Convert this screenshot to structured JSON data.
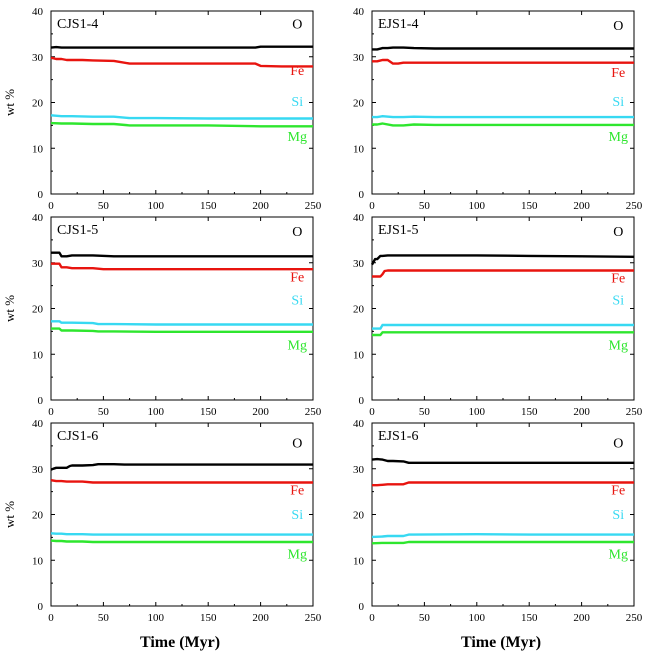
{
  "colors": {
    "O": "#000000",
    "Fe": "#e8140f",
    "Si": "#37d9f2",
    "Mg": "#2ee62e",
    "axis": "#000000"
  },
  "chart_data": [
    {
      "type": "line",
      "title": "CJS1-4",
      "xlabel": "",
      "ylabel": "wt %",
      "xlim": [
        0,
        250
      ],
      "ylim": [
        0,
        40
      ],
      "xticks": [
        "0",
        "50",
        "100",
        "150",
        "200",
        "250"
      ],
      "yticks": [
        "0",
        "10",
        "20",
        "30",
        "40"
      ],
      "series": [
        {
          "name": "O",
          "x": [
            0,
            5,
            10,
            15,
            20,
            30,
            40,
            60,
            80,
            100,
            150,
            195,
            200,
            210,
            230,
            250
          ],
          "y": [
            32.0,
            32.1,
            32.0,
            32.0,
            32.0,
            32.0,
            32.0,
            32.0,
            32.0,
            32.0,
            32.0,
            32.0,
            32.2,
            32.2,
            32.2,
            32.2
          ]
        },
        {
          "name": "Fe",
          "x": [
            0,
            5,
            10,
            15,
            20,
            30,
            40,
            60,
            75,
            80,
            100,
            150,
            195,
            200,
            220,
            250
          ],
          "y": [
            29.8,
            29.5,
            29.5,
            29.3,
            29.3,
            29.3,
            29.2,
            29.1,
            28.5,
            28.5,
            28.5,
            28.5,
            28.5,
            28.0,
            27.9,
            27.9
          ]
        },
        {
          "name": "Si",
          "x": [
            0,
            10,
            20,
            40,
            60,
            75,
            80,
            100,
            150,
            200,
            250
          ],
          "y": [
            17.2,
            17.0,
            17.0,
            16.9,
            16.9,
            16.6,
            16.6,
            16.6,
            16.5,
            16.5,
            16.5
          ]
        },
        {
          "name": "Mg",
          "x": [
            0,
            10,
            20,
            40,
            60,
            75,
            80,
            100,
            150,
            200,
            250
          ],
          "y": [
            15.5,
            15.4,
            15.4,
            15.3,
            15.3,
            15.0,
            15.0,
            15.0,
            15.0,
            14.8,
            14.8
          ]
        }
      ],
      "labels": [
        {
          "text": "O",
          "x": 235,
          "y": 36.2
        },
        {
          "text": "Fe",
          "x": 235,
          "y": 26.0
        },
        {
          "text": "Si",
          "x": 235,
          "y": 19.2
        },
        {
          "text": "Mg",
          "x": 235,
          "y": 11.6
        }
      ]
    },
    {
      "type": "line",
      "title": "EJS1-4",
      "xlabel": "",
      "ylabel": "",
      "xlim": [
        0,
        250
      ],
      "ylim": [
        0,
        40
      ],
      "xticks": [
        "0",
        "50",
        "100",
        "150",
        "200",
        "250"
      ],
      "yticks": [
        "0",
        "10",
        "20",
        "30",
        "40"
      ],
      "series": [
        {
          "name": "O",
          "x": [
            0,
            5,
            10,
            15,
            20,
            30,
            40,
            60,
            80,
            100,
            150,
            200,
            250
          ],
          "y": [
            31.6,
            31.6,
            31.9,
            31.9,
            32.0,
            32.0,
            31.9,
            31.8,
            31.8,
            31.8,
            31.8,
            31.8,
            31.8
          ]
        },
        {
          "name": "Fe",
          "x": [
            0,
            5,
            10,
            15,
            20,
            25,
            30,
            40,
            60,
            100,
            150,
            200,
            250
          ],
          "y": [
            29.0,
            29.0,
            29.3,
            29.3,
            28.5,
            28.5,
            28.7,
            28.7,
            28.7,
            28.7,
            28.7,
            28.7,
            28.7
          ]
        },
        {
          "name": "Si",
          "x": [
            0,
            5,
            10,
            20,
            30,
            40,
            60,
            100,
            150,
            200,
            250
          ],
          "y": [
            16.8,
            16.8,
            17.0,
            16.8,
            16.8,
            16.9,
            16.8,
            16.8,
            16.8,
            16.8,
            16.8
          ]
        },
        {
          "name": "Mg",
          "x": [
            0,
            5,
            10,
            20,
            30,
            40,
            60,
            100,
            150,
            200,
            250
          ],
          "y": [
            15.2,
            15.2,
            15.4,
            15.0,
            15.0,
            15.2,
            15.1,
            15.1,
            15.1,
            15.1,
            15.1
          ]
        }
      ],
      "labels": [
        {
          "text": "O",
          "x": 235,
          "y": 35.9
        },
        {
          "text": "Fe",
          "x": 235,
          "y": 25.6
        },
        {
          "text": "Si",
          "x": 235,
          "y": 19.2
        },
        {
          "text": "Mg",
          "x": 235,
          "y": 11.6
        }
      ]
    },
    {
      "type": "line",
      "title": "CJS1-5",
      "xlabel": "",
      "ylabel": "wt %",
      "xlim": [
        0,
        250
      ],
      "ylim": [
        0,
        40
      ],
      "xticks": [
        "0",
        "50",
        "100",
        "150",
        "200",
        "250"
      ],
      "yticks": [
        "0",
        "10",
        "20",
        "30",
        "40"
      ],
      "series": [
        {
          "name": "O",
          "x": [
            0,
            8,
            10,
            15,
            20,
            40,
            60,
            100,
            150,
            200,
            250
          ],
          "y": [
            32.2,
            32.2,
            31.4,
            31.4,
            31.6,
            31.6,
            31.4,
            31.4,
            31.4,
            31.4,
            31.4
          ]
        },
        {
          "name": "Fe",
          "x": [
            0,
            8,
            10,
            15,
            20,
            40,
            50,
            100,
            150,
            200,
            250
          ],
          "y": [
            29.8,
            29.8,
            29.0,
            29.0,
            28.8,
            28.8,
            28.6,
            28.6,
            28.6,
            28.6,
            28.6
          ]
        },
        {
          "name": "Si",
          "x": [
            0,
            8,
            10,
            20,
            40,
            45,
            60,
            100,
            150,
            200,
            250
          ],
          "y": [
            17.2,
            17.2,
            16.9,
            16.9,
            16.8,
            16.6,
            16.6,
            16.5,
            16.5,
            16.5,
            16.5
          ]
        },
        {
          "name": "Mg",
          "x": [
            0,
            8,
            10,
            20,
            40,
            45,
            60,
            100,
            150,
            200,
            250
          ],
          "y": [
            15.6,
            15.6,
            15.2,
            15.2,
            15.1,
            15.0,
            15.0,
            14.9,
            14.9,
            14.9,
            14.9
          ]
        }
      ],
      "labels": [
        {
          "text": "O",
          "x": 235,
          "y": 35.9
        },
        {
          "text": "Fe",
          "x": 235,
          "y": 25.9
        },
        {
          "text": "Si",
          "x": 235,
          "y": 20.9
        },
        {
          "text": "Mg",
          "x": 235,
          "y": 11.0
        }
      ]
    },
    {
      "type": "line",
      "title": "EJS1-5",
      "xlabel": "",
      "ylabel": "",
      "xlim": [
        0,
        250
      ],
      "ylim": [
        0,
        40
      ],
      "xticks": [
        "0",
        "50",
        "100",
        "150",
        "200",
        "250"
      ],
      "yticks": [
        "0",
        "10",
        "20",
        "30",
        "40"
      ],
      "series": [
        {
          "name": "O",
          "x": [
            0,
            3,
            5,
            8,
            10,
            15,
            20,
            50,
            100,
            150,
            200,
            250
          ],
          "y": [
            29.6,
            30.8,
            30.8,
            31.5,
            31.5,
            31.6,
            31.6,
            31.6,
            31.6,
            31.5,
            31.4,
            31.3
          ]
        },
        {
          "name": "Fe",
          "x": [
            0,
            3,
            5,
            8,
            10,
            12,
            15,
            50,
            100,
            150,
            200,
            250
          ],
          "y": [
            27.0,
            27.0,
            27.0,
            27.0,
            27.5,
            28.2,
            28.3,
            28.3,
            28.3,
            28.3,
            28.3,
            28.3
          ]
        },
        {
          "name": "Si",
          "x": [
            0,
            5,
            8,
            10,
            15,
            50,
            100,
            150,
            200,
            250
          ],
          "y": [
            15.6,
            15.6,
            15.6,
            16.4,
            16.4,
            16.4,
            16.4,
            16.4,
            16.4,
            16.4
          ]
        },
        {
          "name": "Mg",
          "x": [
            0,
            5,
            8,
            10,
            15,
            50,
            100,
            150,
            200,
            250
          ],
          "y": [
            14.2,
            14.2,
            14.2,
            14.8,
            14.8,
            14.8,
            14.8,
            14.8,
            14.8,
            14.8
          ]
        }
      ],
      "labels": [
        {
          "text": "O",
          "x": 235,
          "y": 35.9
        },
        {
          "text": "Fe",
          "x": 235,
          "y": 25.7
        },
        {
          "text": "Si",
          "x": 235,
          "y": 20.9
        },
        {
          "text": "Mg",
          "x": 235,
          "y": 11.0
        }
      ]
    },
    {
      "type": "line",
      "title": "CJS1-6",
      "xlabel": "Time (Myr)",
      "ylabel": "wt %",
      "xlim": [
        0,
        250
      ],
      "ylim": [
        0,
        40
      ],
      "xticks": [
        "0",
        "50",
        "100",
        "150",
        "200",
        "250"
      ],
      "yticks": [
        "0",
        "10",
        "20",
        "30",
        "40"
      ],
      "series": [
        {
          "name": "O",
          "x": [
            0,
            2,
            5,
            10,
            15,
            18,
            20,
            30,
            40,
            45,
            50,
            60,
            70,
            100,
            150,
            200,
            250
          ],
          "y": [
            29.8,
            30.0,
            30.2,
            30.2,
            30.2,
            30.6,
            30.7,
            30.7,
            30.8,
            31.0,
            31.0,
            31.0,
            30.9,
            30.9,
            30.9,
            30.9,
            30.9
          ]
        },
        {
          "name": "Fe",
          "x": [
            0,
            5,
            10,
            15,
            20,
            30,
            40,
            50,
            60,
            100,
            150,
            200,
            250
          ],
          "y": [
            27.5,
            27.3,
            27.3,
            27.2,
            27.2,
            27.2,
            27.0,
            27.0,
            27.0,
            27.0,
            27.0,
            27.0,
            27.0
          ]
        },
        {
          "name": "Si",
          "x": [
            0,
            5,
            10,
            15,
            20,
            30,
            40,
            50,
            100,
            150,
            200,
            250
          ],
          "y": [
            15.9,
            15.8,
            15.8,
            15.7,
            15.7,
            15.7,
            15.6,
            15.6,
            15.6,
            15.6,
            15.6,
            15.6
          ]
        },
        {
          "name": "Mg",
          "x": [
            0,
            5,
            10,
            15,
            20,
            30,
            40,
            50,
            100,
            150,
            200,
            250
          ],
          "y": [
            14.3,
            14.2,
            14.2,
            14.1,
            14.1,
            14.1,
            14.0,
            14.0,
            14.0,
            14.0,
            14.0,
            14.0
          ]
        }
      ],
      "labels": [
        {
          "text": "O",
          "x": 235,
          "y": 34.6
        },
        {
          "text": "Fe",
          "x": 235,
          "y": 24.4
        },
        {
          "text": "Si",
          "x": 235,
          "y": 19.0
        },
        {
          "text": "Mg",
          "x": 235,
          "y": 10.4
        }
      ]
    },
    {
      "type": "line",
      "title": "EJS1-6",
      "xlabel": "Time (Myr)",
      "ylabel": "",
      "xlim": [
        0,
        250
      ],
      "ylim": [
        0,
        40
      ],
      "xticks": [
        "0",
        "50",
        "100",
        "150",
        "200",
        "250"
      ],
      "yticks": [
        "0",
        "10",
        "20",
        "30",
        "40"
      ],
      "series": [
        {
          "name": "O",
          "x": [
            0,
            5,
            10,
            15,
            20,
            30,
            35,
            40,
            100,
            150,
            200,
            250
          ],
          "y": [
            32.0,
            32.1,
            32.0,
            31.7,
            31.7,
            31.6,
            31.3,
            31.3,
            31.3,
            31.3,
            31.3,
            31.3
          ]
        },
        {
          "name": "Fe",
          "x": [
            0,
            5,
            10,
            15,
            20,
            30,
            35,
            40,
            100,
            150,
            200,
            250
          ],
          "y": [
            26.4,
            26.4,
            26.5,
            26.6,
            26.6,
            26.6,
            27.0,
            27.0,
            27.0,
            27.0,
            27.0,
            27.0
          ]
        },
        {
          "name": "Si",
          "x": [
            0,
            10,
            15,
            30,
            35,
            40,
            100,
            150,
            200,
            250
          ],
          "y": [
            15.1,
            15.2,
            15.3,
            15.3,
            15.6,
            15.6,
            15.7,
            15.6,
            15.6,
            15.6
          ]
        },
        {
          "name": "Mg",
          "x": [
            0,
            10,
            15,
            30,
            35,
            40,
            100,
            150,
            200,
            250
          ],
          "y": [
            13.7,
            13.8,
            13.8,
            13.8,
            14.0,
            14.0,
            14.0,
            14.0,
            14.0,
            14.0
          ]
        }
      ],
      "labels": [
        {
          "text": "O",
          "x": 235,
          "y": 34.6
        },
        {
          "text": "Fe",
          "x": 235,
          "y": 24.4
        },
        {
          "text": "Si",
          "x": 235,
          "y": 19.0
        },
        {
          "text": "Mg",
          "x": 235,
          "y": 10.4
        }
      ]
    }
  ]
}
